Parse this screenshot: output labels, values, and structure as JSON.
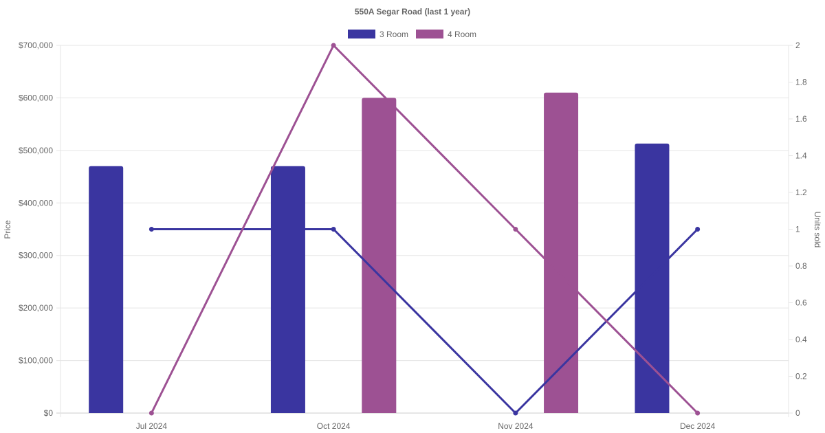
{
  "chart_data": {
    "type": "bar",
    "title": "550A Segar Road (last 1 year)",
    "categories": [
      "Jul 2024",
      "Oct 2024",
      "Nov 2024",
      "Dec 2024"
    ],
    "y_left": {
      "label": "Price",
      "ticks": [
        "$0",
        "$100,000",
        "$200,000",
        "$300,000",
        "$400,000",
        "$500,000",
        "$600,000",
        "$700,000"
      ],
      "range": [
        0,
        700000
      ]
    },
    "y_right": {
      "label": "Units sold",
      "ticks": [
        "0",
        "0.2",
        "0.4",
        "0.6",
        "0.8",
        "1",
        "1.2",
        "1.4",
        "1.6",
        "1.8",
        "2"
      ],
      "range": [
        0,
        2
      ]
    },
    "bar_series": [
      {
        "name": "3 Room",
        "color": "#3a35a0",
        "values": [
          470000,
          470000,
          null,
          513000
        ]
      },
      {
        "name": "4 Room",
        "color": "#9d5193",
        "values": [
          null,
          600000,
          610000,
          null
        ]
      }
    ],
    "line_series": [
      {
        "color": "#3a35a0",
        "values": [
          1,
          1,
          0,
          1
        ]
      },
      {
        "color": "#9d5193",
        "values": [
          0,
          2,
          1,
          0
        ]
      }
    ],
    "legend": [
      {
        "name": "3 Room",
        "color": "#3a35a0"
      },
      {
        "name": "4 Room",
        "color": "#9d5193"
      }
    ],
    "grid": true,
    "legend_position": "top"
  }
}
